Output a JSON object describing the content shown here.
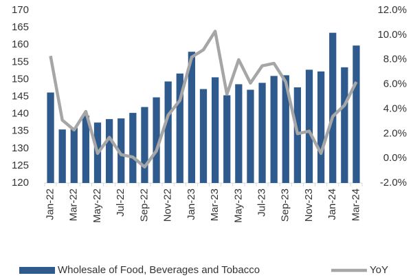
{
  "chart_data": {
    "type": "bar",
    "categories": [
      "Jan-22",
      null,
      "Mar-22",
      null,
      "May-22",
      null,
      "Jul-22",
      null,
      "Sep-22",
      null,
      "Nov-22",
      null,
      "Jan-23",
      null,
      "Mar-23",
      null,
      "May-23",
      null,
      "Jul-23",
      null,
      "Sep-23",
      null,
      "Nov-23",
      null,
      "Jan-24",
      null,
      "Mar-24"
    ],
    "series": [
      {
        "name": "Wholesale of Food, Beverages and Tobacco",
        "type": "bar",
        "color": "#2e5a8e",
        "values": [
          146.2,
          135.5,
          136,
          139.5,
          137.5,
          138.5,
          138.7,
          140.3,
          142,
          144.8,
          149.4,
          151.7,
          158,
          147.2,
          150.6,
          145.4,
          148.6,
          147,
          149,
          151,
          151.2,
          147.7,
          152.8,
          152.3,
          163.5,
          153.5,
          159.8
        ]
      },
      {
        "name": "YoY",
        "type": "line",
        "axis": "y2",
        "color": "#a6a6a6",
        "values": [
          8.3,
          3.1,
          2.3,
          3.8,
          0.4,
          1.7,
          0.3,
          0.1,
          -0.7,
          0.6,
          3.5,
          4.7,
          8.2,
          8.8,
          10.3,
          5.2,
          8.0,
          6.1,
          7.5,
          7.7,
          6.2,
          2.0,
          2.2,
          0.4,
          3.4,
          4.3,
          6.2
        ]
      }
    ],
    "ylim": [
      120,
      170
    ],
    "yticks": [
      120,
      125,
      130,
      135,
      140,
      145,
      150,
      155,
      160,
      165,
      170
    ],
    "y2lim": [
      -2,
      12
    ],
    "y2ticks": [
      {
        "value": -2,
        "label": "-2.0%"
      },
      {
        "value": 0,
        "label": "0.0%"
      },
      {
        "value": 2,
        "label": "2.0%"
      },
      {
        "value": 4,
        "label": "4.0%"
      },
      {
        "value": 6,
        "label": "6.0%"
      },
      {
        "value": 8,
        "label": "8.0%"
      },
      {
        "value": 10,
        "label": "10.0%"
      },
      {
        "value": 12,
        "label": "12.0%"
      }
    ],
    "legend": "bottom"
  }
}
